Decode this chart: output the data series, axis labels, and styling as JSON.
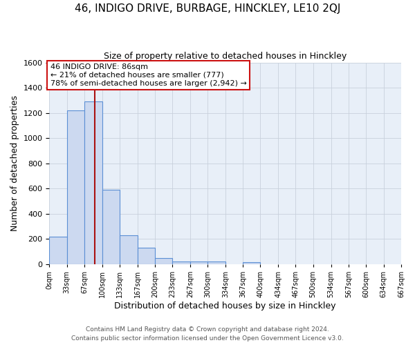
{
  "title": "46, INDIGO DRIVE, BURBAGE, HINCKLEY, LE10 2QJ",
  "subtitle": "Size of property relative to detached houses in Hinckley",
  "xlabel": "Distribution of detached houses by size in Hinckley",
  "ylabel": "Number of detached properties",
  "bin_edges": [
    0,
    33,
    67,
    100,
    133,
    167,
    200,
    233,
    267,
    300,
    334,
    367,
    400,
    434,
    467,
    500,
    534,
    567,
    600,
    634,
    667
  ],
  "bar_heights": [
    220,
    1220,
    1290,
    590,
    230,
    130,
    50,
    20,
    20,
    20,
    0,
    15,
    0,
    0,
    0,
    0,
    0,
    0,
    0,
    0
  ],
  "bar_facecolor": "#ccd9f0",
  "bar_edgecolor": "#5b8fd4",
  "grid_color": "#c8d0dc",
  "background_color": "#e8eff8",
  "property_line_x": 86,
  "property_line_color": "#aa1111",
  "annotation_text": "46 INDIGO DRIVE: 86sqm\n← 21% of detached houses are smaller (777)\n78% of semi-detached houses are larger (2,942) →",
  "annotation_box_color": "#ffffff",
  "annotation_box_edgecolor": "#cc1111",
  "ylim": [
    0,
    1600
  ],
  "yticks": [
    0,
    200,
    400,
    600,
    800,
    1000,
    1200,
    1400,
    1600
  ],
  "tick_labels": [
    "0sqm",
    "33sqm",
    "67sqm",
    "100sqm",
    "133sqm",
    "167sqm",
    "200sqm",
    "233sqm",
    "267sqm",
    "300sqm",
    "334sqm",
    "367sqm",
    "400sqm",
    "434sqm",
    "467sqm",
    "500sqm",
    "534sqm",
    "567sqm",
    "600sqm",
    "634sqm",
    "667sqm"
  ],
  "footer_text": "Contains HM Land Registry data © Crown copyright and database right 2024.\nContains public sector information licensed under the Open Government Licence v3.0.",
  "figsize": [
    6.0,
    5.0
  ],
  "dpi": 100
}
